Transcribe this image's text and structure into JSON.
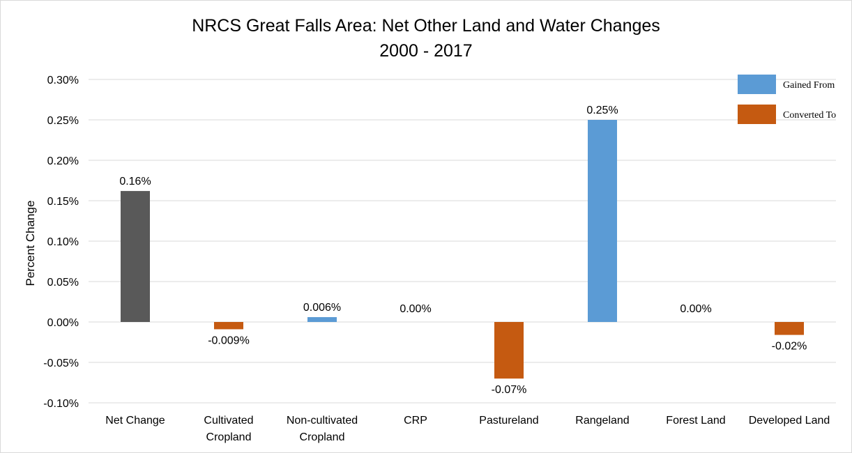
{
  "chart_data": {
    "type": "bar",
    "title": [
      "NRCS Great Falls Area: Net Other Land and Water Changes",
      "2000 - 2017"
    ],
    "ylabel": "Percent Change",
    "xlabel": "",
    "ylim": [
      -0.1,
      0.3
    ],
    "y_ticks": [
      0.3,
      0.25,
      0.2,
      0.15,
      0.1,
      0.05,
      0.0,
      -0.05,
      -0.1
    ],
    "y_tick_labels": [
      "0.30%",
      "0.25%",
      "0.20%",
      "0.15%",
      "0.10%",
      "0.05%",
      "0.00%",
      "-0.05%",
      "-0.10%"
    ],
    "grid": true,
    "legend_position": "top-right",
    "legend": [
      {
        "label": "Gained From",
        "color": "#5b9bd5"
      },
      {
        "label": "Converted To",
        "color": "#c55a11"
      }
    ],
    "categories": [
      [
        "Net Change"
      ],
      [
        "Cultivated",
        "Cropland"
      ],
      [
        "Non-cultivated",
        "Cropland"
      ],
      [
        "CRP"
      ],
      [
        "Pastureland"
      ],
      [
        "Rangeland"
      ],
      [
        "Forest Land"
      ],
      [
        "Developed Land"
      ]
    ],
    "values": [
      0.162,
      -0.009,
      0.006,
      0.0,
      -0.07,
      0.25,
      0.0,
      -0.016
    ],
    "data_labels": [
      "0.16%",
      "-0.009%",
      "0.006%",
      "0.00%",
      "-0.07%",
      "0.25%",
      "0.00%",
      "-0.02%"
    ],
    "bar_colors": [
      "#595959",
      "#c55a11",
      "#5b9bd5",
      "#5b9bd5",
      "#c55a11",
      "#5b9bd5",
      "#5b9bd5",
      "#c55a11"
    ]
  }
}
